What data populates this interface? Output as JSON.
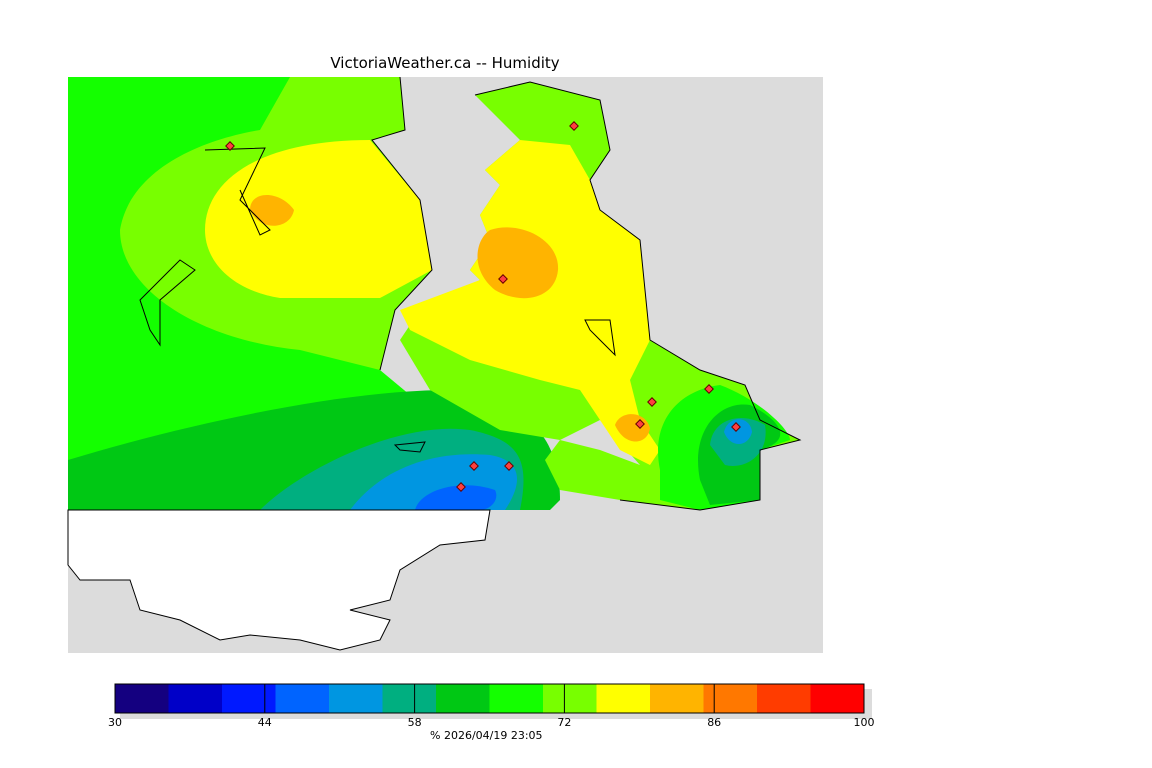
{
  "title": "VictoriaWeather.ca -- Humidity",
  "colorbar": {
    "min": 30,
    "max": 100,
    "step": 5,
    "ticks": [
      "30",
      "44",
      "58",
      "72",
      "86",
      "100"
    ],
    "colors": [
      "#140080",
      "#0000c8",
      "#0019ff",
      "#0064ff",
      "#0096e1",
      "#00af80",
      "#00c814",
      "#14ff00",
      "#78ff00",
      "#ffff00",
      "#ffb400",
      "#ff7800",
      "#ff3c00",
      "#ff0000"
    ],
    "unit_and_time": "%  2026/04/19 23:05"
  },
  "stations_count": 10
}
